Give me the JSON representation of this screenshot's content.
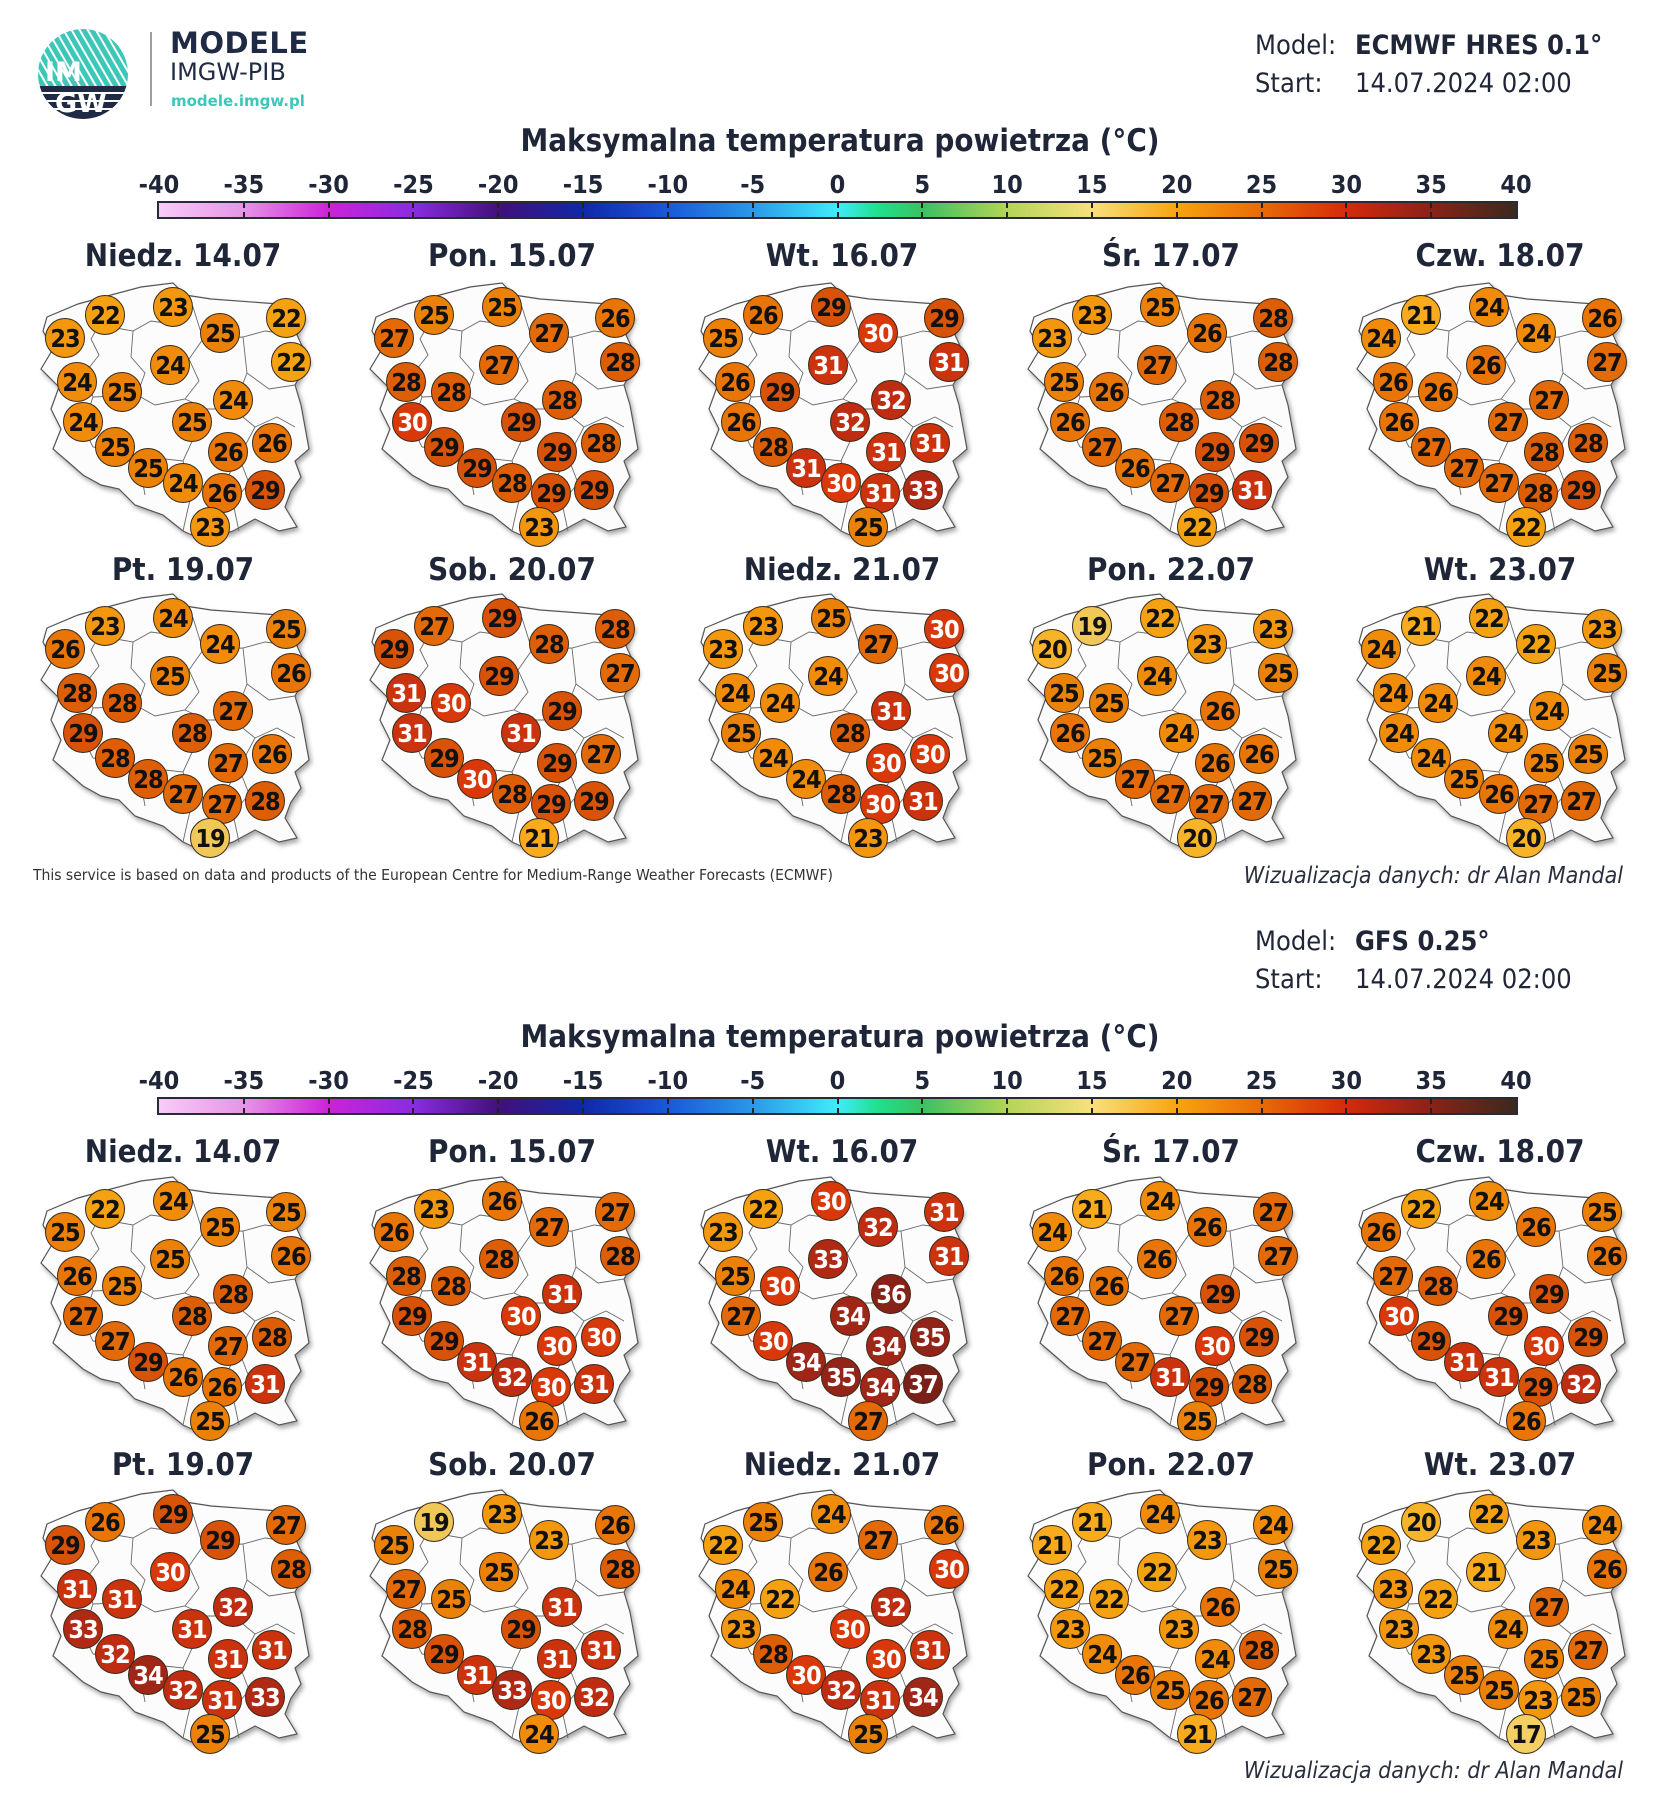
{
  "brand": {
    "logo_text_top": "IM",
    "logo_text_bottom": "GW",
    "title": "MODELE",
    "subtitle": "IMGW-PIB",
    "url": "modele.imgw.pl",
    "accent_color": "#3cc7b8",
    "navy_color": "#1f2a44"
  },
  "legend": {
    "ticks": [
      "-40",
      "-35",
      "-30",
      "-25",
      "-20",
      "-15",
      "-10",
      "-5",
      "0",
      "5",
      "10",
      "15",
      "20",
      "25",
      "30",
      "35",
      "40"
    ],
    "range": [
      -40,
      40
    ],
    "unit": "°C"
  },
  "panels": [
    {
      "model_label": "Model:",
      "model_name": "ECMWF HRES 0.1°",
      "start_label": "Start:",
      "start_value": "14.07.2024 02:00",
      "title": "Maksymalna temperatura powietrza (°C)",
      "footer_credit": "This service is based on data and products of the European Centre for Medium-Range Weather Forecasts (ECMWF)",
      "footer_author": "Wizualizacja danych: dr Alan Mandal",
      "days": [
        {
          "label": "Niedz. 14.07",
          "values": [
            22,
            23,
            22,
            23,
            25,
            22,
            24,
            24,
            25,
            24,
            24,
            25,
            25,
            26,
            26,
            25,
            24,
            26,
            29,
            23
          ]
        },
        {
          "label": "Pon. 15.07",
          "values": [
            25,
            25,
            26,
            27,
            27,
            28,
            27,
            28,
            28,
            28,
            30,
            29,
            29,
            29,
            28,
            29,
            28,
            29,
            29,
            23
          ]
        },
        {
          "label": "Wt. 16.07",
          "values": [
            26,
            29,
            29,
            25,
            30,
            31,
            31,
            26,
            29,
            32,
            26,
            32,
            28,
            31,
            31,
            31,
            30,
            31,
            33,
            25
          ]
        },
        {
          "label": "Śr. 17.07",
          "values": [
            23,
            25,
            28,
            23,
            26,
            28,
            27,
            25,
            26,
            28,
            26,
            28,
            27,
            29,
            29,
            26,
            27,
            29,
            31,
            22
          ]
        },
        {
          "label": "Czw. 18.07",
          "values": [
            21,
            24,
            26,
            24,
            24,
            27,
            26,
            26,
            26,
            27,
            26,
            27,
            27,
            28,
            28,
            27,
            27,
            28,
            29,
            22
          ]
        },
        {
          "label": "Pt. 19.07",
          "values": [
            23,
            24,
            25,
            26,
            24,
            26,
            25,
            28,
            28,
            27,
            29,
            28,
            28,
            27,
            26,
            28,
            27,
            27,
            28,
            19
          ]
        },
        {
          "label": "Sob. 20.07",
          "values": [
            27,
            29,
            28,
            29,
            28,
            27,
            29,
            31,
            30,
            29,
            31,
            31,
            29,
            29,
            27,
            30,
            28,
            29,
            29,
            21
          ]
        },
        {
          "label": "Niedz. 21.07",
          "values": [
            23,
            25,
            30,
            23,
            27,
            30,
            24,
            24,
            24,
            31,
            25,
            28,
            24,
            30,
            30,
            24,
            28,
            30,
            31,
            23
          ]
        },
        {
          "label": "Pon. 22.07",
          "values": [
            19,
            22,
            23,
            20,
            23,
            25,
            24,
            25,
            25,
            26,
            26,
            24,
            25,
            26,
            26,
            27,
            27,
            27,
            27,
            20
          ]
        },
        {
          "label": "Wt. 23.07",
          "values": [
            21,
            22,
            23,
            24,
            22,
            25,
            24,
            24,
            24,
            24,
            24,
            24,
            24,
            25,
            25,
            25,
            26,
            27,
            27,
            20
          ]
        }
      ]
    },
    {
      "model_label": "Model:",
      "model_name": "GFS 0.25°",
      "start_label": "Start:",
      "start_value": "14.07.2024 02:00",
      "title": "Maksymalna temperatura powietrza (°C)",
      "footer_author": "Wizualizacja danych: dr Alan Mandal",
      "days": [
        {
          "label": "Niedz. 14.07",
          "values": [
            22,
            24,
            25,
            25,
            25,
            26,
            25,
            26,
            25,
            28,
            27,
            28,
            27,
            27,
            28,
            29,
            26,
            26,
            31,
            25
          ]
        },
        {
          "label": "Pon. 15.07",
          "values": [
            23,
            26,
            27,
            26,
            27,
            28,
            28,
            28,
            28,
            31,
            29,
            30,
            29,
            30,
            30,
            31,
            32,
            30,
            31,
            26
          ]
        },
        {
          "label": "Wt. 16.07",
          "values": [
            22,
            30,
            31,
            23,
            32,
            31,
            33,
            25,
            30,
            36,
            27,
            34,
            30,
            34,
            35,
            34,
            35,
            34,
            37,
            27
          ]
        },
        {
          "label": "Śr. 17.07",
          "values": [
            21,
            24,
            27,
            24,
            26,
            27,
            26,
            26,
            26,
            29,
            27,
            27,
            27,
            30,
            29,
            27,
            31,
            29,
            28,
            25
          ]
        },
        {
          "label": "Czw. 18.07",
          "values": [
            22,
            24,
            25,
            26,
            26,
            26,
            26,
            27,
            28,
            29,
            30,
            29,
            29,
            30,
            29,
            31,
            31,
            29,
            32,
            26
          ]
        },
        {
          "label": "Pt. 19.07",
          "values": [
            26,
            29,
            27,
            29,
            29,
            28,
            30,
            31,
            31,
            32,
            33,
            31,
            32,
            31,
            31,
            34,
            32,
            31,
            33,
            25
          ]
        },
        {
          "label": "Sob. 20.07",
          "values": [
            19,
            23,
            26,
            25,
            23,
            28,
            25,
            27,
            25,
            31,
            28,
            29,
            29,
            31,
            31,
            31,
            33,
            30,
            32,
            24
          ]
        },
        {
          "label": "Niedz. 21.07",
          "values": [
            25,
            24,
            26,
            22,
            27,
            30,
            26,
            24,
            22,
            32,
            23,
            30,
            28,
            30,
            31,
            30,
            32,
            31,
            34,
            25
          ]
        },
        {
          "label": "Pon. 22.07",
          "values": [
            21,
            24,
            24,
            21,
            23,
            25,
            22,
            22,
            22,
            26,
            23,
            23,
            24,
            24,
            28,
            26,
            25,
            26,
            27,
            21
          ]
        },
        {
          "label": "Wt. 23.07",
          "values": [
            20,
            22,
            24,
            22,
            23,
            26,
            21,
            23,
            22,
            27,
            23,
            24,
            23,
            25,
            27,
            25,
            25,
            23,
            25,
            17
          ]
        }
      ]
    }
  ]
}
